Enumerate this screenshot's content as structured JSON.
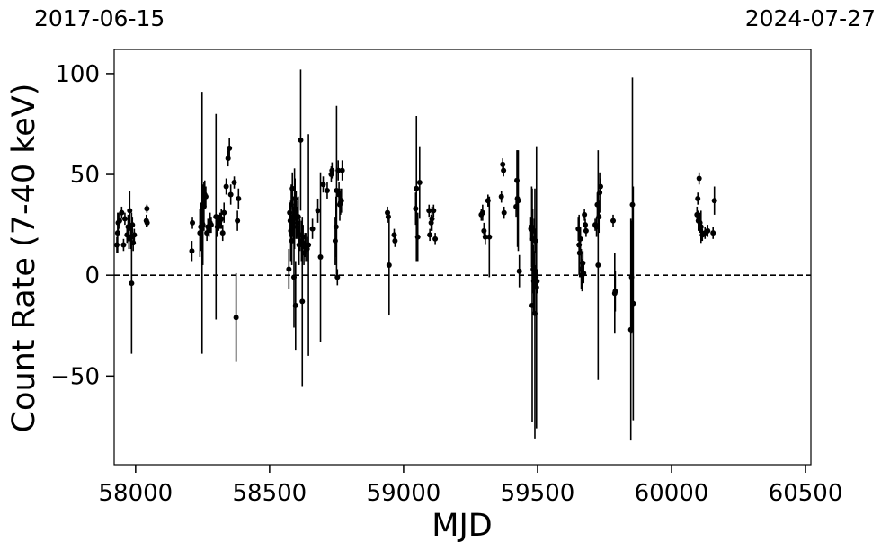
{
  "header": {
    "date_start": "2017-06-15",
    "date_end": "2024-07-27"
  },
  "chart_data": {
    "type": "scatter",
    "xlabel": "MJD",
    "ylabel": "Count Rate (7-40 keV)",
    "xlim": [
      57920,
      60520
    ],
    "ylim": [
      -94,
      112
    ],
    "xticks": [
      58000,
      58500,
      59000,
      59500,
      60000,
      60500
    ],
    "yticks": [
      -50,
      0,
      50,
      100
    ],
    "ytick_labels": [
      "−50",
      "0",
      "50",
      "100"
    ],
    "reference_line": {
      "y": 0,
      "style": "dashed"
    },
    "grid": false,
    "marker_color": "#000000",
    "points": [
      {
        "x": 57930,
        "y": 15,
        "err": 4
      },
      {
        "x": 57933,
        "y": 21,
        "err": 10
      },
      {
        "x": 57935,
        "y": 26,
        "err": 5
      },
      {
        "x": 57940,
        "y": 27,
        "err": 4
      },
      {
        "x": 57948,
        "y": 31,
        "err": 3
      },
      {
        "x": 57955,
        "y": 15,
        "err": 3
      },
      {
        "x": 57960,
        "y": 28,
        "err": 3
      },
      {
        "x": 57968,
        "y": 20,
        "err": 4
      },
      {
        "x": 57972,
        "y": 24,
        "err": 6
      },
      {
        "x": 57975,
        "y": 18,
        "err": 5
      },
      {
        "x": 57978,
        "y": 32,
        "err": 10
      },
      {
        "x": 57982,
        "y": 19,
        "err": 6
      },
      {
        "x": 57985,
        "y": -4,
        "err": 35
      },
      {
        "x": 57988,
        "y": 25,
        "err": 4
      },
      {
        "x": 57991,
        "y": 16,
        "err": 4
      },
      {
        "x": 57995,
        "y": 20,
        "err": 3
      },
      {
        "x": 58040,
        "y": 27,
        "err": 3
      },
      {
        "x": 58042,
        "y": 33,
        "err": 2
      },
      {
        "x": 58043,
        "y": 26,
        "err": 2
      },
      {
        "x": 58210,
        "y": 12,
        "err": 5
      },
      {
        "x": 58212,
        "y": 26,
        "err": 3
      },
      {
        "x": 58240,
        "y": 21,
        "err": 12
      },
      {
        "x": 58243,
        "y": 24,
        "err": 12
      },
      {
        "x": 58248,
        "y": 26,
        "err": 65
      },
      {
        "x": 58251,
        "y": 25,
        "err": 20
      },
      {
        "x": 58255,
        "y": 34,
        "err": 12
      },
      {
        "x": 58258,
        "y": 40,
        "err": 7
      },
      {
        "x": 58262,
        "y": 39,
        "err": 5
      },
      {
        "x": 58266,
        "y": 21,
        "err": 4
      },
      {
        "x": 58270,
        "y": 24,
        "err": 4
      },
      {
        "x": 58274,
        "y": 23,
        "err": 4
      },
      {
        "x": 58278,
        "y": 26,
        "err": 5
      },
      {
        "x": 58282,
        "y": 25,
        "err": 4
      },
      {
        "x": 58300,
        "y": 29,
        "err": 51
      },
      {
        "x": 58305,
        "y": 24,
        "err": 5
      },
      {
        "x": 58310,
        "y": 26,
        "err": 4
      },
      {
        "x": 58315,
        "y": 27,
        "err": 4
      },
      {
        "x": 58320,
        "y": 28,
        "err": 5
      },
      {
        "x": 58325,
        "y": 21,
        "err": 4
      },
      {
        "x": 58330,
        "y": 31,
        "err": 5
      },
      {
        "x": 58338,
        "y": 44,
        "err": 4
      },
      {
        "x": 58345,
        "y": 58,
        "err": 4
      },
      {
        "x": 58350,
        "y": 63,
        "err": 5
      },
      {
        "x": 58355,
        "y": 40,
        "err": 5
      },
      {
        "x": 58368,
        "y": 46,
        "err": 3
      },
      {
        "x": 58375,
        "y": -21,
        "err": 22
      },
      {
        "x": 58380,
        "y": 27,
        "err": 5
      },
      {
        "x": 58384,
        "y": 38,
        "err": 5
      },
      {
        "x": 58572,
        "y": 3,
        "err": 10
      },
      {
        "x": 58575,
        "y": 31,
        "err": 5
      },
      {
        "x": 58577,
        "y": 27,
        "err": 8
      },
      {
        "x": 58579,
        "y": 22,
        "err": 15
      },
      {
        "x": 58581,
        "y": 35,
        "err": 10
      },
      {
        "x": 58583,
        "y": 17,
        "err": 12
      },
      {
        "x": 58585,
        "y": 43,
        "err": 8
      },
      {
        "x": 58587,
        "y": 29,
        "err": 10
      },
      {
        "x": 58589,
        "y": 24,
        "err": 8
      },
      {
        "x": 58591,
        "y": -1,
        "err": 25
      },
      {
        "x": 58593,
        "y": 33,
        "err": 20
      },
      {
        "x": 58595,
        "y": 38,
        "err": 10
      },
      {
        "x": 58597,
        "y": -15,
        "err": 22
      },
      {
        "x": 58599,
        "y": 30,
        "err": 12
      },
      {
        "x": 58601,
        "y": 28,
        "err": 9
      },
      {
        "x": 58604,
        "y": 26,
        "err": 8
      },
      {
        "x": 58607,
        "y": 29,
        "err": 10
      },
      {
        "x": 58610,
        "y": 15,
        "err": 10
      },
      {
        "x": 58613,
        "y": 20,
        "err": 8
      },
      {
        "x": 58616,
        "y": 67,
        "err": 35
      },
      {
        "x": 58619,
        "y": 17,
        "err": 10
      },
      {
        "x": 58622,
        "y": -13,
        "err": 42
      },
      {
        "x": 58625,
        "y": 19,
        "err": 6
      },
      {
        "x": 58628,
        "y": 11,
        "err": 6
      },
      {
        "x": 58632,
        "y": 15,
        "err": 6
      },
      {
        "x": 58635,
        "y": 14,
        "err": 7
      },
      {
        "x": 58640,
        "y": 13,
        "err": 6
      },
      {
        "x": 58645,
        "y": 15,
        "err": 55
      },
      {
        "x": 58660,
        "y": 23,
        "err": 5
      },
      {
        "x": 58680,
        "y": 32,
        "err": 6
      },
      {
        "x": 58690,
        "y": 9,
        "err": 42
      },
      {
        "x": 58700,
        "y": 45,
        "err": 4
      },
      {
        "x": 58715,
        "y": 42,
        "err": 4
      },
      {
        "x": 58730,
        "y": 50,
        "err": 4
      },
      {
        "x": 58733,
        "y": 52,
        "err": 4
      },
      {
        "x": 58745,
        "y": 17,
        "err": 12
      },
      {
        "x": 58748,
        "y": 24,
        "err": 15
      },
      {
        "x": 58750,
        "y": 42,
        "err": 42
      },
      {
        "x": 58753,
        "y": -1,
        "err": 4
      },
      {
        "x": 58756,
        "y": 52,
        "err": 5
      },
      {
        "x": 58759,
        "y": 40,
        "err": 6
      },
      {
        "x": 58762,
        "y": 35,
        "err": 8
      },
      {
        "x": 58765,
        "y": 36,
        "err": 6
      },
      {
        "x": 58768,
        "y": 37,
        "err": 6
      },
      {
        "x": 58771,
        "y": 52,
        "err": 5
      },
      {
        "x": 58940,
        "y": 31,
        "err": 3
      },
      {
        "x": 58943,
        "y": 29,
        "err": 3
      },
      {
        "x": 58946,
        "y": 5,
        "err": 25
      },
      {
        "x": 58965,
        "y": 20,
        "err": 3
      },
      {
        "x": 58968,
        "y": 17,
        "err": 3
      },
      {
        "x": 59045,
        "y": 33,
        "err": 8
      },
      {
        "x": 59048,
        "y": 43,
        "err": 36
      },
      {
        "x": 59053,
        "y": 19,
        "err": 12
      },
      {
        "x": 59060,
        "y": 46,
        "err": 18
      },
      {
        "x": 59095,
        "y": 32,
        "err": 3
      },
      {
        "x": 59098,
        "y": 20,
        "err": 3
      },
      {
        "x": 59103,
        "y": 26,
        "err": 4
      },
      {
        "x": 59106,
        "y": 28,
        "err": 6
      },
      {
        "x": 59112,
        "y": 32,
        "err": 3
      },
      {
        "x": 59118,
        "y": 18,
        "err": 3
      },
      {
        "x": 59290,
        "y": 30,
        "err": 3
      },
      {
        "x": 59295,
        "y": 31,
        "err": 4
      },
      {
        "x": 59300,
        "y": 22,
        "err": 4
      },
      {
        "x": 59305,
        "y": 19,
        "err": 4
      },
      {
        "x": 59315,
        "y": 37,
        "err": 3
      },
      {
        "x": 59320,
        "y": 19,
        "err": 20
      },
      {
        "x": 59365,
        "y": 39,
        "err": 3
      },
      {
        "x": 59370,
        "y": 55,
        "err": 3
      },
      {
        "x": 59373,
        "y": 52,
        "err": 3
      },
      {
        "x": 59375,
        "y": 31,
        "err": 3
      },
      {
        "x": 59420,
        "y": 34,
        "err": 5
      },
      {
        "x": 59423,
        "y": 47,
        "err": 15
      },
      {
        "x": 59425,
        "y": 38,
        "err": 24
      },
      {
        "x": 59428,
        "y": 37,
        "err": 25
      },
      {
        "x": 59432,
        "y": 2,
        "err": 8
      },
      {
        "x": 59475,
        "y": 23,
        "err": 6
      },
      {
        "x": 59478,
        "y": 24,
        "err": 20
      },
      {
        "x": 59480,
        "y": -15,
        "err": 58
      },
      {
        "x": 59482,
        "y": 18,
        "err": 15
      },
      {
        "x": 59484,
        "y": 3,
        "err": 12
      },
      {
        "x": 59486,
        "y": -3,
        "err": 15
      },
      {
        "x": 59488,
        "y": 22,
        "err": 6
      },
      {
        "x": 59490,
        "y": -19,
        "err": 62
      },
      {
        "x": 59492,
        "y": 17,
        "err": 6
      },
      {
        "x": 59494,
        "y": -1,
        "err": 6
      },
      {
        "x": 59496,
        "y": -6,
        "err": 70
      },
      {
        "x": 59498,
        "y": -3,
        "err": 6
      },
      {
        "x": 59652,
        "y": 23,
        "err": 6
      },
      {
        "x": 59655,
        "y": 15,
        "err": 15
      },
      {
        "x": 59657,
        "y": 11,
        "err": 12
      },
      {
        "x": 59660,
        "y": 18,
        "err": 6
      },
      {
        "x": 59663,
        "y": 3,
        "err": 10
      },
      {
        "x": 59666,
        "y": 0,
        "err": 8
      },
      {
        "x": 59669,
        "y": 6,
        "err": 6
      },
      {
        "x": 59672,
        "y": 1,
        "err": 5
      },
      {
        "x": 59675,
        "y": 30,
        "err": 3
      },
      {
        "x": 59678,
        "y": 25,
        "err": 3
      },
      {
        "x": 59681,
        "y": 22,
        "err": 3
      },
      {
        "x": 59715,
        "y": 25,
        "err": 3
      },
      {
        "x": 59720,
        "y": 24,
        "err": 5
      },
      {
        "x": 59723,
        "y": 35,
        "err": 6
      },
      {
        "x": 59726,
        "y": 5,
        "err": 57
      },
      {
        "x": 59729,
        "y": 29,
        "err": 8
      },
      {
        "x": 59732,
        "y": 41,
        "err": 10
      },
      {
        "x": 59735,
        "y": 44,
        "err": 4
      },
      {
        "x": 59782,
        "y": 27,
        "err": 3
      },
      {
        "x": 59788,
        "y": -9,
        "err": 20
      },
      {
        "x": 59790,
        "y": -8,
        "err": 10
      },
      {
        "x": 59848,
        "y": -27,
        "err": 55
      },
      {
        "x": 59851,
        "y": -1,
        "err": 28
      },
      {
        "x": 59854,
        "y": 35,
        "err": 63
      },
      {
        "x": 59857,
        "y": -14,
        "err": 58
      },
      {
        "x": 60095,
        "y": 30,
        "err": 4
      },
      {
        "x": 60098,
        "y": 38,
        "err": 3
      },
      {
        "x": 60100,
        "y": 27,
        "err": 5
      },
      {
        "x": 60103,
        "y": 48,
        "err": 3
      },
      {
        "x": 60106,
        "y": 26,
        "err": 5
      },
      {
        "x": 60110,
        "y": 24,
        "err": 8
      },
      {
        "x": 60115,
        "y": 20,
        "err": 3
      },
      {
        "x": 60125,
        "y": 21,
        "err": 3
      },
      {
        "x": 60135,
        "y": 22,
        "err": 3
      },
      {
        "x": 60155,
        "y": 21,
        "err": 3
      },
      {
        "x": 60160,
        "y": 37,
        "err": 7
      }
    ]
  }
}
